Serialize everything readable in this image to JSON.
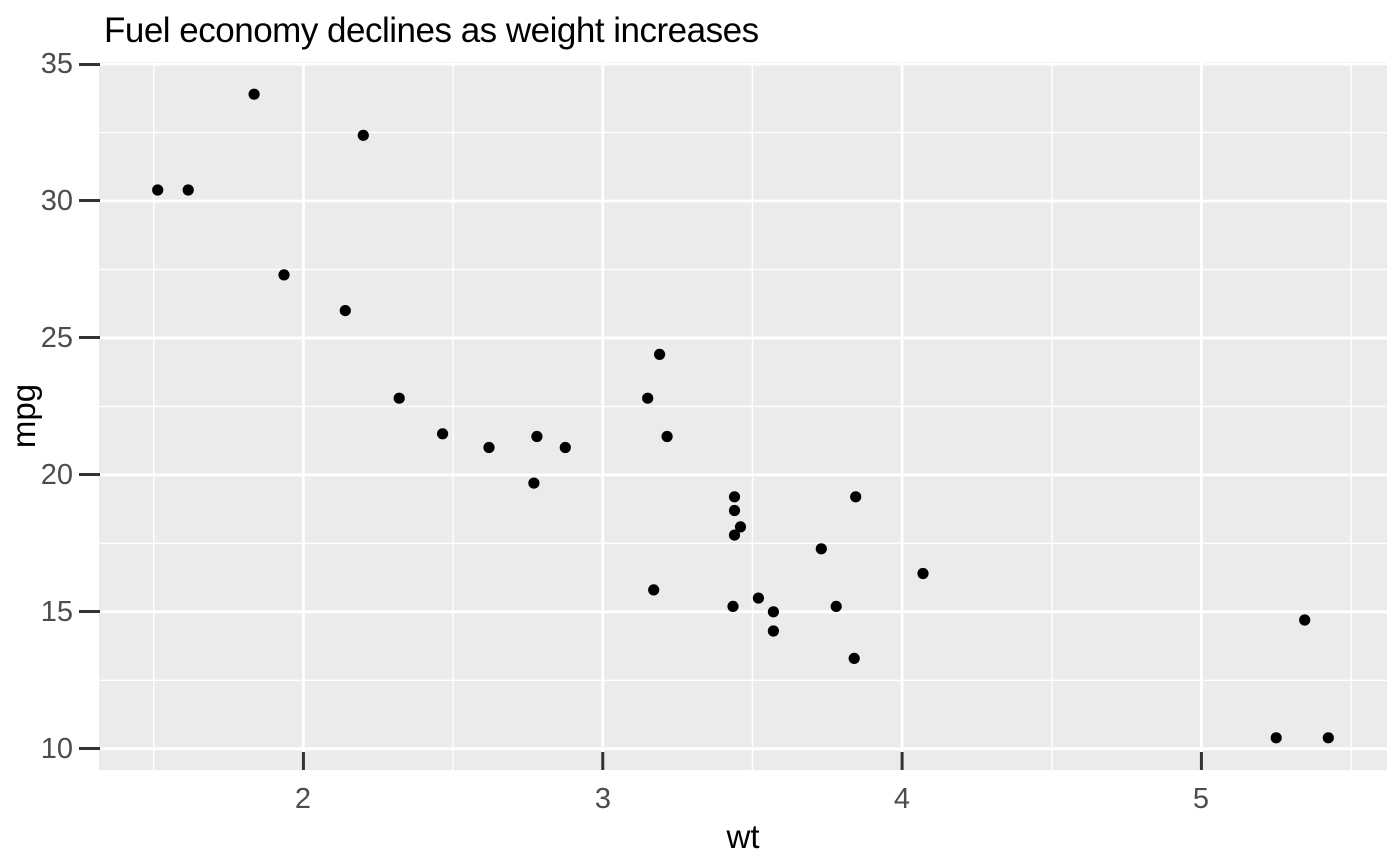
{
  "figure": {
    "background": "#FFFFFF"
  },
  "chart_data": {
    "type": "scatter",
    "title": "Fuel economy declines as weight increases",
    "xlabel": "wt",
    "ylabel": "mpg",
    "xlim": [
      1.317,
      5.62
    ],
    "ylim": [
      9.225,
      35.075
    ],
    "x_ticks": [
      2,
      3,
      4,
      5
    ],
    "y_ticks": [
      10,
      15,
      20,
      25,
      30,
      35
    ],
    "x_minor_ticks": [
      1.5,
      2.5,
      3.5,
      4.5,
      5.5
    ],
    "y_minor_ticks": [
      12.5,
      17.5,
      22.5,
      27.5,
      32.5
    ],
    "grid": "on",
    "legend": "none",
    "panel_bg": "#EBEBEB",
    "grid_color": "#FFFFFF",
    "point_color": "#000000",
    "tick_label_color": "#4D4D4D",
    "tick_mark_color": "#333333",
    "title_color": "#000000",
    "points": [
      [
        2.62,
        21.0
      ],
      [
        2.875,
        21.0
      ],
      [
        2.32,
        22.8
      ],
      [
        3.215,
        21.4
      ],
      [
        3.44,
        18.7
      ],
      [
        3.46,
        18.1
      ],
      [
        3.57,
        14.3
      ],
      [
        3.19,
        24.4
      ],
      [
        3.15,
        22.8
      ],
      [
        3.44,
        19.2
      ],
      [
        3.44,
        17.8
      ],
      [
        4.07,
        16.4
      ],
      [
        3.73,
        17.3
      ],
      [
        3.78,
        15.2
      ],
      [
        5.25,
        10.4
      ],
      [
        5.424,
        10.4
      ],
      [
        5.345,
        14.7
      ],
      [
        2.2,
        32.4
      ],
      [
        1.615,
        30.4
      ],
      [
        1.835,
        33.9
      ],
      [
        2.465,
        21.5
      ],
      [
        3.52,
        15.5
      ],
      [
        3.435,
        15.2
      ],
      [
        3.84,
        13.3
      ],
      [
        3.845,
        19.2
      ],
      [
        1.935,
        27.3
      ],
      [
        2.14,
        26.0
      ],
      [
        1.513,
        30.4
      ],
      [
        3.17,
        15.8
      ],
      [
        2.77,
        19.7
      ],
      [
        3.57,
        15.0
      ],
      [
        2.78,
        21.4
      ]
    ]
  }
}
